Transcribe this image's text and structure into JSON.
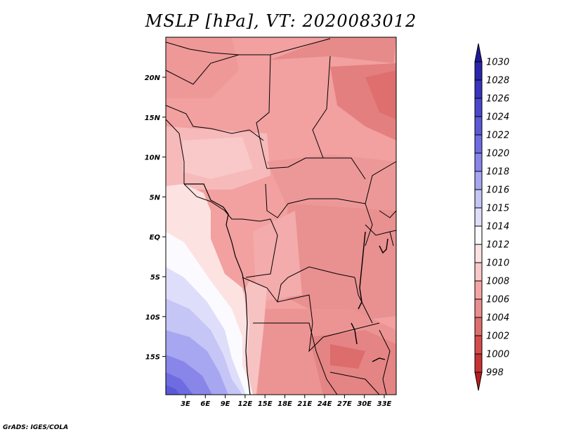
{
  "title": "MSLP [hPa], VT: 2020083012",
  "credit": "GrADS: IGES/COLA",
  "lat_labels": [
    "20N",
    "15N",
    "10N",
    "5N",
    "EQ",
    "5S",
    "10S",
    "15S"
  ],
  "lon_labels": [
    "3E",
    "6E",
    "9E",
    "12E",
    "15E",
    "18E",
    "21E",
    "24E",
    "27E",
    "30E",
    "33E"
  ],
  "colorbar": {
    "levels": [
      "1030",
      "1028",
      "1026",
      "1024",
      "1022",
      "1020",
      "1018",
      "1016",
      "1015",
      "1014",
      "1012",
      "1010",
      "1008",
      "1006",
      "1004",
      "1002",
      "1000",
      "998"
    ],
    "colors": [
      "#1f1a99",
      "#2a25ad",
      "#3933bd",
      "#4a47cb",
      "#5b59d6",
      "#6d6ce0",
      "#8886e8",
      "#a7a6f0",
      "#c5c5f6",
      "#dedefb",
      "#fbfbff",
      "#fde2e2",
      "#fbc8c8",
      "#f5a5a5",
      "#ea8e8e",
      "#e06e6e",
      "#d54c4c",
      "#c73232",
      "#b81d1d"
    ]
  }
}
